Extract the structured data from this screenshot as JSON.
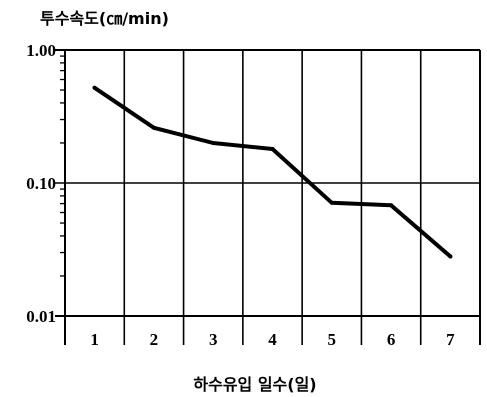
{
  "colors": {
    "background": "#ffffff",
    "line": "#000000",
    "frame": "#000000"
  },
  "chart_data": {
    "type": "line",
    "title": "",
    "xlabel": "하수유입 일수(일)",
    "ylabel": "투수속도(㎝/min)",
    "categories": [
      "1",
      "2",
      "3",
      "4",
      "5",
      "6",
      "7"
    ],
    "series": [
      {
        "values": [
          0.52,
          0.26,
          0.2,
          0.18,
          0.071,
          0.068,
          0.028
        ]
      }
    ],
    "yscale": "log",
    "ylim": [
      0.01,
      1.0
    ],
    "yticks": [
      1.0,
      0.1,
      0.01
    ],
    "ytick_labels": [
      "1.00",
      "0.10",
      "0.01"
    ],
    "grid": true,
    "legend": "none"
  }
}
